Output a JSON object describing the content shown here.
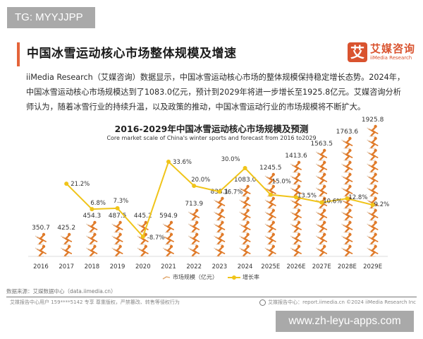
{
  "badge": {
    "text": "TG: MYYJJPP"
  },
  "header": {
    "title": "中国冰雪运动核心市场整体规模及增速",
    "accent_color": "#e4643a"
  },
  "logo": {
    "mark": "艾",
    "name_cn": "艾媒咨询",
    "name_en": "iiMedia Research",
    "color": "#d9532f"
  },
  "intro": {
    "text": "iiMedia Research（艾媒咨询）数据显示，中国冰雪运动核心市场的整体规模保持稳定增长态势。2024年，中国冰雪运动核心市场规模达到了1083.0亿元，预计到2029年将进一步增长至1925.8亿元。艾媒咨询分析师认为，随着冰雪行业的持续升温，以及政策的推动，中国冰雪运动行业的市场规模将不断扩大。"
  },
  "chart_data": {
    "type": "bar+line",
    "title": "2016-2029年中国冰雪运动核心市场规模及预测",
    "subtitle": "Core market scale of China's winter sports and forecast from 2016 to2029",
    "categories": [
      "2016",
      "2017",
      "2018",
      "2019",
      "2020",
      "2021",
      "2022",
      "2023",
      "2024",
      "2025E",
      "2026E",
      "2027E",
      "2028E",
      "2029E"
    ],
    "series": [
      {
        "name": "市场规模（亿元）",
        "type": "pictorial-bar",
        "icon": "skier-icon",
        "color": "#e07b2a",
        "values": [
          350.7,
          425.2,
          454.3,
          487.5,
          445.2,
          594.9,
          713.9,
          833.1,
          1083.0,
          1245.5,
          1413.6,
          1563.5,
          1763.6,
          1925.8
        ],
        "labels": [
          "350.7",
          "425.2",
          "454.3",
          "487.5",
          "445.2",
          "594.9",
          "713.9",
          "833.1",
          "1083.0",
          "1245.5",
          "1413.6",
          "1563.5",
          "1763.6",
          "1925.8"
        ]
      },
      {
        "name": "增长率",
        "type": "line",
        "color": "#f0c419",
        "values": [
          null,
          21.2,
          6.8,
          7.3,
          -8.7,
          33.6,
          20.0,
          16.7,
          30.0,
          15.0,
          13.5,
          10.6,
          12.8,
          9.2
        ],
        "labels": [
          "",
          "21.2%",
          "6.8%",
          "7.3%",
          "-8.7%",
          "33.6%",
          "20.0%",
          "16.7%",
          "30.0%",
          "15.0%",
          "13.5%",
          "10.6%",
          "12.8%",
          "9.2%"
        ]
      }
    ],
    "xlabel": "",
    "ylabel": "",
    "grid": false,
    "legend_position": "bottom"
  },
  "legend": {
    "bar_label": "市场规模（亿元）",
    "line_label": "增长率"
  },
  "footer": {
    "source": "数据来源：艾媒数据中心（data.iimedia.cn）",
    "left": "艾媒报告中心用户 159****5142 专享 尊重版权，严禁篡改、转售等侵权行为",
    "right": "艾媒报告中心：report.iimedia.cn  ©2024  iiMedia Research  Inc"
  },
  "watermark": {
    "text": "www.zh-leyu-apps.com"
  }
}
